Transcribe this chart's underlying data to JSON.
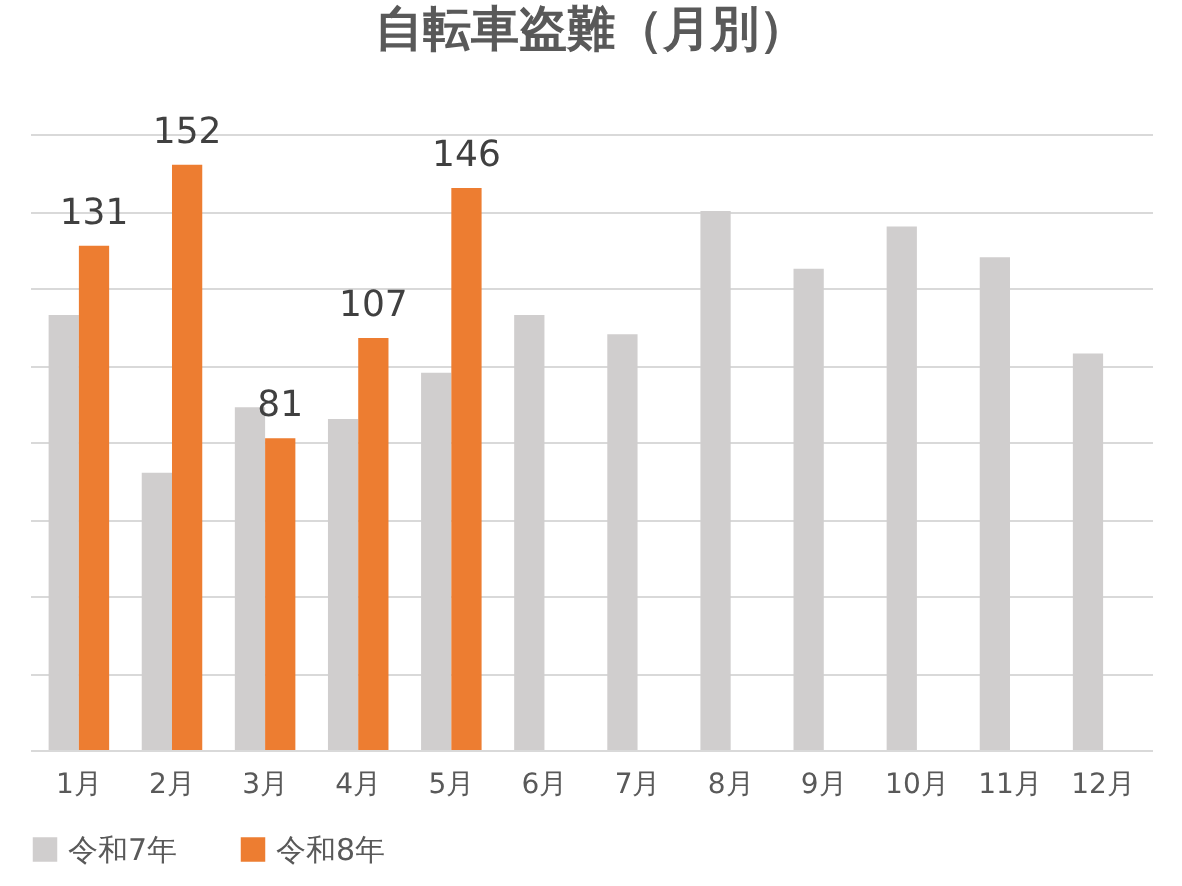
{
  "chart_data": {
    "type": "bar",
    "title": "自転車盗難（月別）",
    "categories": [
      "1月",
      "2月",
      "3月",
      "4月",
      "5月",
      "6月",
      "7月",
      "8月",
      "9月",
      "10月",
      "11月",
      "12月"
    ],
    "series": [
      {
        "name": "令和7年",
        "color": "#d0cece",
        "values": [
          113,
          72,
          89,
          86,
          98,
          113,
          108,
          140,
          125,
          136,
          128,
          103
        ]
      },
      {
        "name": "令和8年",
        "color": "#ed7d31",
        "values": [
          131,
          152,
          81,
          107,
          146,
          null,
          null,
          null,
          null,
          null,
          null,
          null
        ],
        "value_labels": [
          "131",
          "152",
          "81",
          "107",
          "146",
          null,
          null,
          null,
          null,
          null,
          null,
          null
        ]
      }
    ],
    "ylim": [
      0,
      160
    ],
    "yticks": [
      {
        "value": 0,
        "label": null
      },
      {
        "value": 20,
        "label": null
      },
      {
        "value": 40,
        "label": null
      },
      {
        "value": 60,
        "label": null
      },
      {
        "value": 80,
        "label": null
      },
      {
        "value": 100,
        "label": null
      },
      {
        "value": 120,
        "label": null
      },
      {
        "value": 140,
        "label": null
      },
      {
        "value": 160,
        "label": null
      }
    ],
    "tick_labels": "x",
    "grid": "y",
    "legend": "bottom"
  }
}
